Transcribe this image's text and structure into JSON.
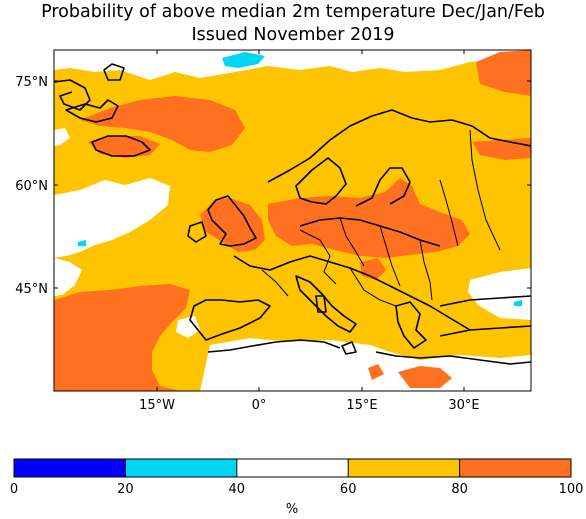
{
  "title": {
    "line1": "Probability of above median 2m temperature Dec/Jan/Feb",
    "line2": "Issued November 2019"
  },
  "map": {
    "lat_labels": [
      "75°N",
      "60°N",
      "45°N"
    ],
    "lat_values": [
      75,
      60,
      45
    ],
    "lon_labels": [
      "15°W",
      "0°",
      "15°E",
      "30°E"
    ],
    "lon_values": [
      -15,
      0,
      15,
      30
    ],
    "extent": {
      "lon_min": -30,
      "lon_max": 40,
      "lat_min": 30,
      "lat_max": 80
    }
  },
  "colorbar": {
    "unit": "%",
    "ticks": [
      "0",
      "20",
      "40",
      "60",
      "80",
      "100"
    ],
    "bins": [
      {
        "from": 0,
        "to": 20,
        "color": "#0000ff"
      },
      {
        "from": 20,
        "to": 40,
        "color": "#00d5f2"
      },
      {
        "from": 40,
        "to": 60,
        "color": "#ffffff"
      },
      {
        "from": 60,
        "to": 80,
        "color": "#ffc400"
      },
      {
        "from": 80,
        "to": 100,
        "color": "#ff7020"
      }
    ]
  }
}
